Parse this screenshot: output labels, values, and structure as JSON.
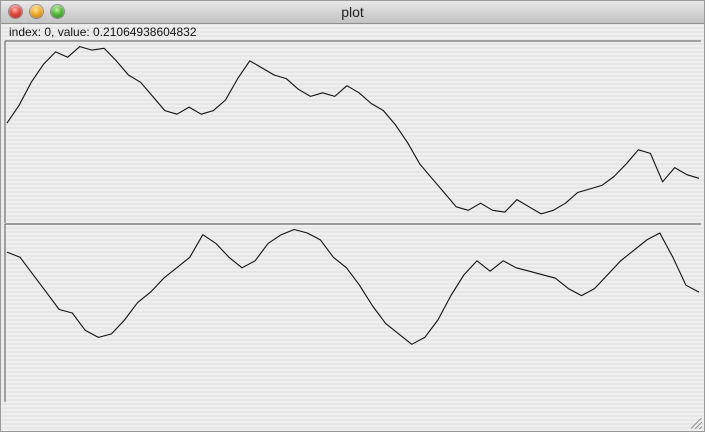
{
  "window": {
    "title": "plot"
  },
  "readout": {
    "text": "index: 0, value: 0.21064938604832"
  },
  "icons": {
    "close": "close-icon",
    "minimize": "minimize-icon",
    "zoom": "zoom-icon",
    "resize": "resize-grip-icon"
  },
  "colors": {
    "line": "#111111",
    "axis": "#555555"
  },
  "chart_data": [
    {
      "type": "line",
      "title": "",
      "xlabel": "",
      "ylabel": "",
      "grid": false,
      "series": [
        {
          "values": [
            0.55,
            0.65,
            0.78,
            0.88,
            0.95,
            0.92,
            0.98,
            0.96,
            0.97,
            0.9,
            0.82,
            0.78,
            0.7,
            0.62,
            0.6,
            0.64,
            0.6,
            0.62,
            0.68,
            0.8,
            0.9,
            0.86,
            0.82,
            0.8,
            0.74,
            0.7,
            0.72,
            0.7,
            0.76,
            0.72,
            0.66,
            0.62,
            0.54,
            0.44,
            0.32,
            0.24,
            0.16,
            0.08,
            0.06,
            0.1,
            0.06,
            0.05,
            0.12,
            0.08,
            0.04,
            0.06,
            0.1,
            0.16,
            0.18,
            0.2,
            0.25,
            0.32,
            0.4,
            0.38,
            0.22,
            0.3,
            0.26,
            0.24
          ]
        }
      ]
    },
    {
      "type": "line",
      "title": "",
      "xlabel": "",
      "ylabel": "",
      "grid": false,
      "series": [
        {
          "values": [
            0.85,
            0.82,
            0.72,
            0.62,
            0.52,
            0.5,
            0.4,
            0.36,
            0.38,
            0.46,
            0.56,
            0.62,
            0.7,
            0.76,
            0.82,
            0.95,
            0.9,
            0.82,
            0.76,
            0.8,
            0.9,
            0.95,
            0.98,
            0.96,
            0.92,
            0.82,
            0.76,
            0.66,
            0.54,
            0.44,
            0.38,
            0.32,
            0.36,
            0.46,
            0.6,
            0.72,
            0.8,
            0.74,
            0.8,
            0.76,
            0.74,
            0.72,
            0.7,
            0.64,
            0.6,
            0.64,
            0.72,
            0.8,
            0.86,
            0.92,
            0.96,
            0.82,
            0.66,
            0.62
          ]
        }
      ]
    }
  ]
}
